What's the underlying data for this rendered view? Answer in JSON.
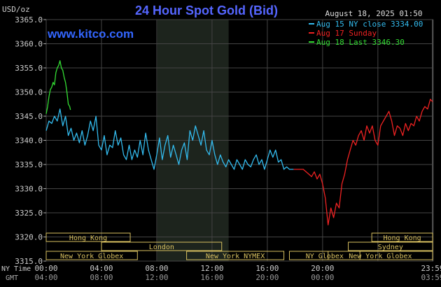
{
  "header": {
    "title": "24 Hour Spot Gold (Bid)",
    "unit": "USD/oz",
    "datetime": "August 18, 2025 01:50",
    "watermark": "www.kitco.com"
  },
  "legend": [
    {
      "label": "Aug 15 NY close 3334.00",
      "color": "#33bbee"
    },
    {
      "label": "Aug 17 Sunday",
      "color": "#ee2222"
    },
    {
      "label": "Aug 18 Last 3346.30",
      "color": "#33dd33"
    }
  ],
  "axis_labels": {
    "ny_time": "NY Time",
    "gmt": "GMT"
  },
  "sessions": [
    {
      "label": "Hong Kong",
      "start": -0.08,
      "end": 3.04,
      "row": 0
    },
    {
      "label": "London",
      "start": 2.0,
      "end": 6.35,
      "row": 1
    },
    {
      "label": "New York Globex",
      "start": 0.0,
      "end": 3.3,
      "row": 2
    },
    {
      "label": "New York NYMEX",
      "start": 5.08,
      "end": 8.6,
      "row": 2
    },
    {
      "label": "NY Globex",
      "start": 8.8,
      "end": 11.35,
      "row": 2
    },
    {
      "label": "Hong Kong",
      "start": 11.78,
      "end": 14.2,
      "row": 0
    },
    {
      "label": "Sydney",
      "start": 10.93,
      "end": 14.2,
      "row": 1
    },
    {
      "label": "New York Globex",
      "start": 10.2,
      "end": 14.2,
      "row": 2
    }
  ],
  "chart_data": {
    "type": "line",
    "xlim": [
      0,
      13.98
    ],
    "ylim": [
      3315.0,
      3365.0
    ],
    "y_ticks": [
      3315.0,
      3320.0,
      3325.0,
      3330.0,
      3335.0,
      3340.0,
      3345.0,
      3350.0,
      3355.0,
      3360.0,
      3365.0
    ],
    "y_tick_labels": [
      "3315.0",
      "3320.0",
      "3325.0",
      "3330.0",
      "3335.0",
      "3340.0",
      "3345.0",
      "3350.0",
      "3355.0",
      "3360.0",
      "3365.0"
    ],
    "x_ticks": [
      0,
      2,
      4,
      6,
      8,
      10,
      12,
      14
    ],
    "x_tick_labels_ny": [
      "00:00",
      "04:00",
      "08:00",
      "12:00",
      "16:00",
      "20:00",
      "23:59"
    ],
    "x_tick_positions_ny": [
      0,
      2,
      4,
      6,
      8,
      10,
      13.98
    ],
    "x_tick_labels_gmt": [
      "04:00",
      "08:00",
      "12:00",
      "16:00",
      "20:00",
      "00:00",
      "03:59"
    ],
    "x_tick_positions_gmt": [
      0,
      2,
      4,
      6,
      8,
      10,
      13.98
    ],
    "shaded_region": [
      4.02,
      6.6
    ],
    "grid": true,
    "series": [
      {
        "name": "Aug 15 NY close 3334.00",
        "color": "#33bbee",
        "x": [
          0,
          0.1,
          0.2,
          0.3,
          0.4,
          0.5,
          0.6,
          0.7,
          0.8,
          0.9,
          1.0,
          1.1,
          1.2,
          1.3,
          1.4,
          1.5,
          1.6,
          1.7,
          1.8,
          1.9,
          2.0,
          2.1,
          2.2,
          2.3,
          2.4,
          2.5,
          2.6,
          2.7,
          2.8,
          2.9,
          3.0,
          3.1,
          3.2,
          3.3,
          3.4,
          3.5,
          3.6,
          3.7,
          3.8,
          3.9,
          4.0,
          4.1,
          4.2,
          4.3,
          4.4,
          4.5,
          4.6,
          4.7,
          4.8,
          4.9,
          5.0,
          5.1,
          5.2,
          5.3,
          5.4,
          5.5,
          5.6,
          5.7,
          5.8,
          5.9,
          6.0,
          6.1,
          6.2,
          6.3,
          6.4,
          6.5,
          6.6,
          6.7,
          6.8,
          6.9,
          7.0,
          7.1,
          7.2,
          7.3,
          7.4,
          7.5,
          7.6,
          7.7,
          7.8,
          7.9,
          8.0,
          8.1,
          8.2,
          8.3,
          8.4,
          8.5,
          8.6,
          8.7,
          8.8,
          8.95
        ],
        "values": [
          3342,
          3344,
          3343.5,
          3345,
          3344,
          3346.5,
          3343,
          3345,
          3341,
          3342.5,
          3340,
          3341.5,
          3339.5,
          3342,
          3339,
          3341,
          3344,
          3342,
          3345,
          3339,
          3338,
          3341,
          3337,
          3339,
          3338.5,
          3342,
          3339,
          3340.5,
          3337,
          3336,
          3339,
          3336,
          3338,
          3336.5,
          3340,
          3337,
          3341.5,
          3338,
          3336,
          3334,
          3337,
          3340.5,
          3336,
          3339,
          3341,
          3336.5,
          3339,
          3337,
          3335,
          3338,
          3339.5,
          3336,
          3342,
          3340,
          3343,
          3341,
          3339,
          3342,
          3338,
          3337,
          3340,
          3337,
          3335,
          3337,
          3335.5,
          3334.5,
          3336,
          3335,
          3334,
          3336,
          3335,
          3334,
          3336,
          3335,
          3334.5,
          3336,
          3337,
          3335,
          3336,
          3334,
          3336,
          3338,
          3336.5,
          3338,
          3335.5,
          3336,
          3334,
          3334.5,
          3334,
          3334
        ]
      },
      {
        "name": "Aug 17 Sunday",
        "color": "#ee2222",
        "x": [
          8.95,
          9.1,
          9.3,
          9.5,
          9.6,
          9.7,
          9.8,
          9.9,
          10.0,
          10.1,
          10.2,
          10.3,
          10.4,
          10.5,
          10.6,
          10.7,
          10.8,
          10.9,
          11.0,
          11.1,
          11.2,
          11.3,
          11.4,
          11.5,
          11.6,
          11.7,
          11.8,
          11.9,
          12.0,
          12.1,
          12.2,
          12.3,
          12.4,
          12.5,
          12.6,
          12.7,
          12.8,
          12.9,
          13.0,
          13.1,
          13.2,
          13.3,
          13.4,
          13.5,
          13.6,
          13.7,
          13.8,
          13.9,
          13.98
        ],
        "values": [
          3334,
          3334,
          3334,
          3333,
          3332.5,
          3333.5,
          3332,
          3333,
          3331,
          3328,
          3322.5,
          3326,
          3324,
          3327,
          3326,
          3331,
          3333,
          3336,
          3338,
          3340,
          3339,
          3341,
          3342,
          3340,
          3343,
          3341.5,
          3343,
          3340,
          3339,
          3343,
          3344,
          3345,
          3346,
          3344,
          3341,
          3343,
          3342.5,
          3341,
          3343.5,
          3342,
          3343.5,
          3343,
          3345,
          3344,
          3346,
          3347,
          3346.5,
          3348.5,
          3348
        ]
      },
      {
        "name": "Aug 18 Last 3346.30",
        "color": "#33dd33",
        "x": [
          0,
          0.05,
          0.1,
          0.15,
          0.2,
          0.25,
          0.3,
          0.35,
          0.4,
          0.45,
          0.5,
          0.55,
          0.6,
          0.65,
          0.7,
          0.75,
          0.8,
          0.85,
          0.88
        ],
        "values": [
          3345.5,
          3347,
          3349,
          3350.5,
          3351,
          3352,
          3351.5,
          3354,
          3355,
          3355.5,
          3356.5,
          3355,
          3354.5,
          3353,
          3352,
          3350,
          3347.5,
          3347,
          3346.3
        ]
      }
    ]
  }
}
